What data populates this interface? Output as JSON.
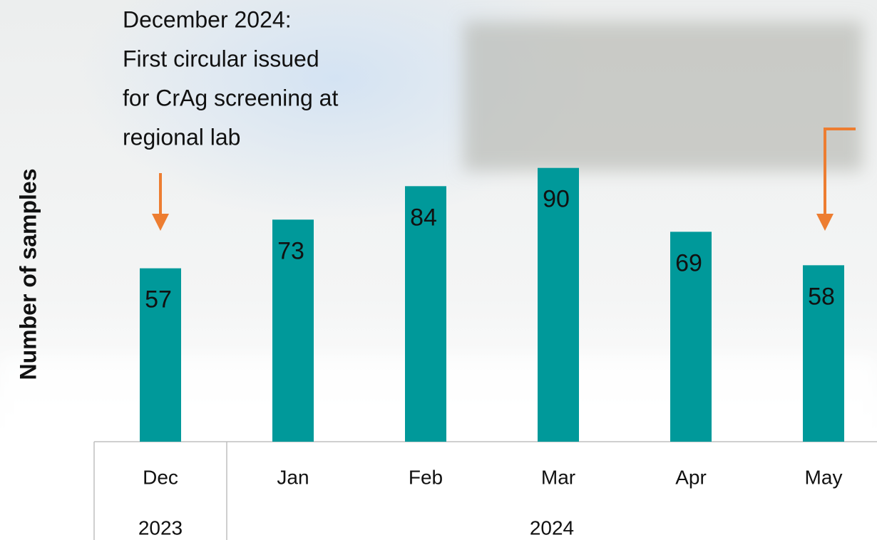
{
  "chart_data": {
    "type": "bar",
    "annotation": [
      "December 2024:",
      "First circular issued",
      "for CrAg screening at",
      "regional lab"
    ],
    "y_label": "Number of samples",
    "categories": [
      "Dec",
      "Jan",
      "Feb",
      "Mar",
      "Apr",
      "May"
    ],
    "groups": [
      {
        "label": "2023",
        "count": 1
      },
      {
        "label": "2024",
        "count": 5
      }
    ],
    "values": [
      57,
      73,
      84,
      90,
      69,
      58
    ],
    "color": "#00999a",
    "ylim": [
      0,
      100
    ]
  }
}
